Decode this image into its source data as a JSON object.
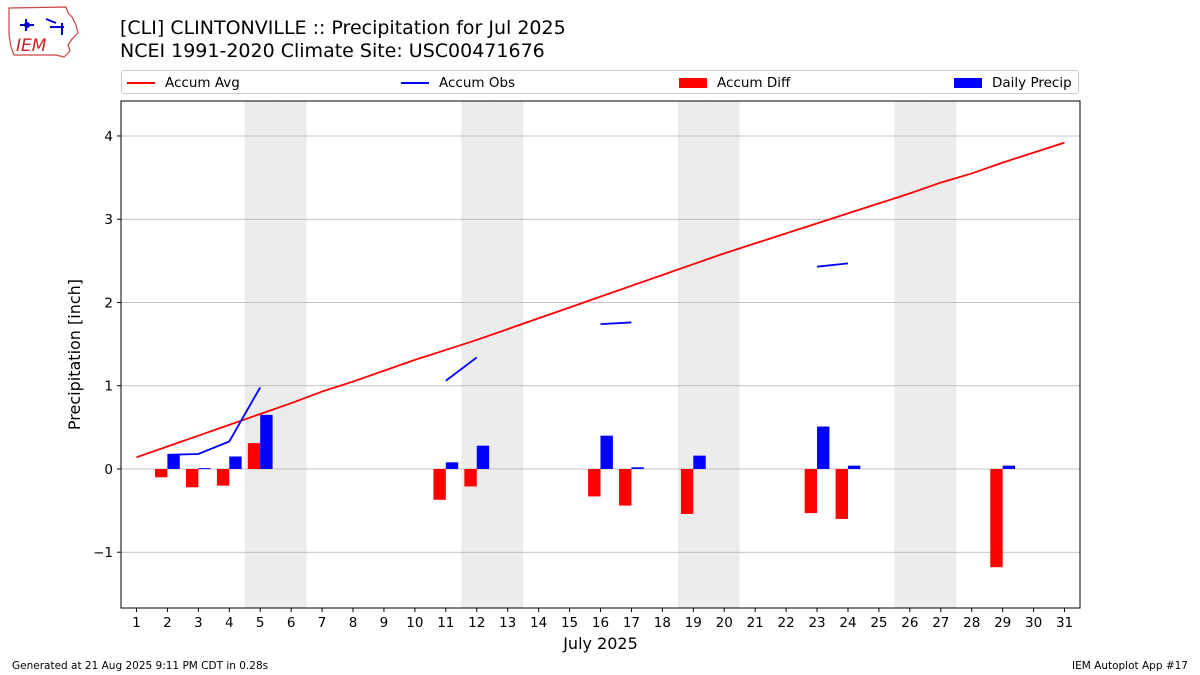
{
  "logo": {
    "icon": "iem-logo-icon",
    "text": "IEM"
  },
  "header": {
    "title": "[CLI] CLINTONVILLE :: Precipitation for Jul 2025",
    "subtitle": "NCEI 1991-2020 Climate Site: USC00471676"
  },
  "legend": {
    "accum_avg": "Accum Avg",
    "accum_obs": "Accum Obs",
    "accum_diff": "Accum Diff",
    "daily_precip": "Daily Precip"
  },
  "footer": {
    "left": "Generated at 21 Aug 2025 9:11 PM CDT in 0.28s",
    "right": "IEM Autoplot App #17"
  },
  "colors": {
    "avg": "#ff0000",
    "obs": "#0000ff",
    "diff": "#ff0000",
    "precip": "#0000ff",
    "weekend": "#ececec",
    "grid": "#b0b0b0"
  },
  "chart_data": {
    "type": "bar",
    "xlabel": "July 2025",
    "ylabel": "Precipitation [inch]",
    "x": [
      1,
      2,
      3,
      4,
      5,
      6,
      7,
      8,
      9,
      10,
      11,
      12,
      13,
      14,
      15,
      16,
      17,
      18,
      19,
      20,
      21,
      22,
      23,
      24,
      25,
      26,
      27,
      28,
      29,
      30,
      31
    ],
    "xlim": [
      0.5,
      31.5
    ],
    "ylim": [
      -1.67,
      4.42
    ],
    "yticks": [
      -1,
      0,
      1,
      2,
      3,
      4
    ],
    "ytick_labels": [
      "−1",
      "0",
      "1",
      "2",
      "3",
      "4"
    ],
    "grid": "y",
    "weekend_days": [
      5,
      6,
      12,
      13,
      19,
      20,
      26,
      27
    ],
    "series": [
      {
        "name": "Accum Avg",
        "type": "line",
        "x": [
          1,
          2,
          3,
          4,
          5,
          6,
          7,
          8,
          9,
          10,
          11,
          12,
          13,
          14,
          15,
          16,
          17,
          18,
          19,
          20,
          21,
          22,
          23,
          24,
          25,
          26,
          27,
          28,
          29,
          30,
          31
        ],
        "values": [
          0.14,
          0.27,
          0.4,
          0.53,
          0.66,
          0.79,
          0.93,
          1.05,
          1.18,
          1.31,
          1.43,
          1.55,
          1.68,
          1.81,
          1.94,
          2.07,
          2.2,
          2.33,
          2.46,
          2.59,
          2.71,
          2.83,
          2.95,
          3.07,
          3.19,
          3.31,
          3.44,
          3.55,
          3.68,
          3.8,
          3.92
        ]
      },
      {
        "name": "Accum Obs",
        "type": "line",
        "x": [
          2,
          3,
          4,
          5,
          null,
          11,
          12,
          null,
          16,
          17,
          null,
          23,
          24
        ],
        "values": [
          0.17,
          0.18,
          0.33,
          0.98,
          null,
          1.06,
          1.34,
          null,
          1.74,
          1.76,
          null,
          2.43,
          2.47
        ]
      },
      {
        "name": "Accum Diff",
        "type": "bar",
        "x": [
          2,
          3,
          4,
          5,
          11,
          12,
          16,
          17,
          19,
          23,
          24,
          29
        ],
        "values": [
          -0.1,
          -0.22,
          -0.2,
          0.31,
          -0.37,
          -0.21,
          -0.33,
          -0.44,
          -0.54,
          -0.53,
          -0.6,
          -1.18
        ]
      },
      {
        "name": "Daily Precip",
        "type": "bar",
        "x": [
          2,
          3,
          4,
          5,
          11,
          12,
          16,
          17,
          19,
          23,
          24,
          29
        ],
        "values": [
          0.17,
          0.01,
          0.15,
          0.65,
          0.08,
          0.28,
          0.4,
          0.02,
          0.16,
          0.51,
          0.04,
          0.04
        ]
      }
    ]
  }
}
